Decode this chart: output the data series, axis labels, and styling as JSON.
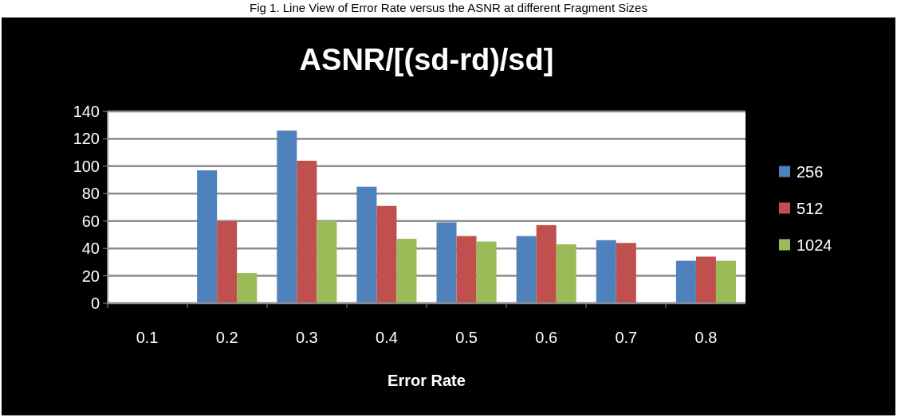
{
  "chart_data": {
    "type": "bar",
    "title": "ASNR/[(sd-rd)/sd]",
    "xlabel": "Error Rate",
    "annotations": [
      "Fig 1. Line View of Error Rate versus the ASNR at different Fragment Sizes"
    ],
    "categories": [
      "0.1",
      "0.2",
      "0.3",
      "0.4",
      "0.5",
      "0.6",
      "0.7",
      "0.8"
    ],
    "series": [
      {
        "name": "256",
        "color": "#4f81bd",
        "values": [
          0,
          97,
          126,
          85,
          59,
          49,
          46,
          31
        ]
      },
      {
        "name": "512",
        "color": "#c0504d",
        "values": [
          0,
          60,
          104,
          71,
          49,
          57,
          44,
          34
        ]
      },
      {
        "name": "1024",
        "color": "#9bbb59",
        "values": [
          0,
          22,
          60,
          47,
          45,
          43,
          0,
          31
        ]
      }
    ],
    "ylim": [
      0,
      140
    ],
    "yticks": [
      0,
      20,
      40,
      60,
      80,
      100,
      120,
      140
    ],
    "grid": "y",
    "legend": "right"
  }
}
